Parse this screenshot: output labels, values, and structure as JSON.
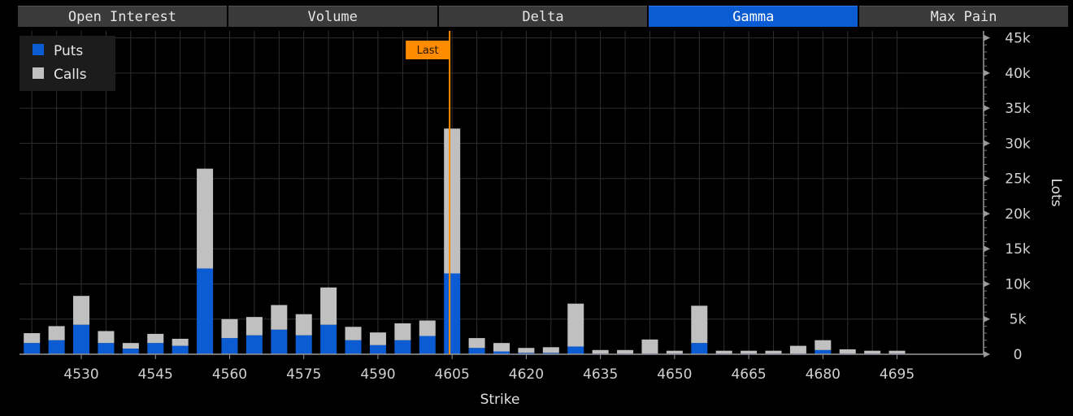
{
  "tabs": [
    {
      "label": "Open Interest",
      "active": false
    },
    {
      "label": "Volume",
      "active": false
    },
    {
      "label": "Delta",
      "active": false
    },
    {
      "label": "Gamma",
      "active": true
    },
    {
      "label": "Max Pain",
      "active": false
    }
  ],
  "colors": {
    "puts": "#0b5bd3",
    "calls": "#c0c0c0",
    "last_line": "#ff8c00",
    "active_tab": "#0b5bd3",
    "grid": "#2e2e2e"
  },
  "chart_data": {
    "type": "bar",
    "stacked": true,
    "xlabel": "Strike",
    "ylabel": "Lots",
    "ylim": [
      0,
      46000
    ],
    "y_axis_side": "right",
    "y_ticks": [
      0,
      5000,
      10000,
      15000,
      20000,
      25000,
      30000,
      35000,
      40000,
      45000
    ],
    "y_tick_labels": [
      "0",
      "5k",
      "10k",
      "15k",
      "20k",
      "25k",
      "30k",
      "35k",
      "40k",
      "45k"
    ],
    "x_tick_labels": [
      "4530",
      "4545",
      "4560",
      "4575",
      "4590",
      "4605",
      "4620",
      "4635",
      "4650",
      "4665",
      "4680",
      "4695"
    ],
    "x_tick_values": [
      4530,
      4545,
      4560,
      4575,
      4590,
      4605,
      4620,
      4635,
      4650,
      4665,
      4680,
      4695
    ],
    "xlim": [
      4517.5,
      4712.5
    ],
    "grid": true,
    "legend_position": "top-left",
    "categories": [
      4520,
      4525,
      4530,
      4535,
      4540,
      4545,
      4550,
      4555,
      4560,
      4565,
      4570,
      4575,
      4580,
      4585,
      4590,
      4595,
      4600,
      4605,
      4610,
      4615,
      4620,
      4625,
      4630,
      4635,
      4640,
      4645,
      4650,
      4655,
      4660,
      4665,
      4670,
      4675,
      4680,
      4685,
      4690,
      4695
    ],
    "series": [
      {
        "name": "Puts",
        "values": [
          1600,
          2000,
          4200,
          1600,
          800,
          1600,
          1200,
          12200,
          2300,
          2700,
          3500,
          2700,
          4200,
          2000,
          1300,
          2000,
          2600,
          11500,
          900,
          400,
          200,
          200,
          1100,
          100,
          100,
          100,
          100,
          1600,
          100,
          100,
          100,
          100,
          600,
          100,
          100,
          100
        ]
      },
      {
        "name": "Calls",
        "values": [
          1400,
          2000,
          4100,
          1700,
          800,
          1300,
          1000,
          14200,
          2700,
          2600,
          3500,
          3000,
          5300,
          1900,
          1800,
          2400,
          2200,
          20600,
          1400,
          1200,
          700,
          800,
          6100,
          500,
          500,
          2000,
          400,
          5300,
          400,
          400,
          400,
          1100,
          1400,
          600,
          400,
          400
        ]
      }
    ],
    "annotations": [
      {
        "label": "Last",
        "x": 4604.5
      }
    ]
  }
}
